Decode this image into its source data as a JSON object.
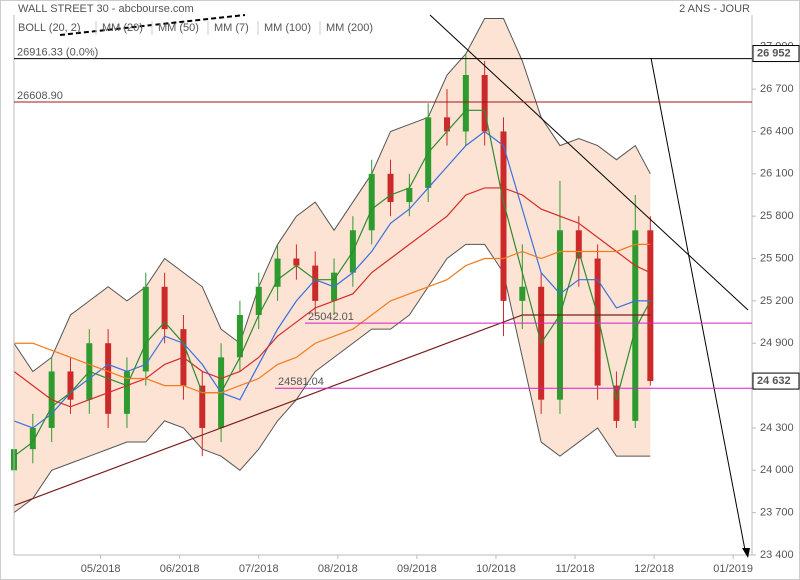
{
  "chart_data": {
    "type": "candlestick",
    "title": "WALL STREET 30 - abcbourse.com",
    "period": "2 ANS - JOUR",
    "x": [
      0,
      5,
      10,
      15,
      20,
      25,
      30,
      35,
      40,
      45,
      50,
      55,
      60,
      65,
      70,
      75,
      80,
      85,
      90,
      95,
      100,
      105,
      110,
      115,
      120,
      125,
      130,
      135,
      140,
      145,
      150,
      155,
      160,
      165,
      169
    ],
    "open": [
      24000,
      24150,
      24300,
      24700,
      24500,
      24900,
      24400,
      24700,
      25300,
      25000,
      24600,
      24300,
      24800,
      25100,
      25300,
      25500,
      25450,
      25200,
      25400,
      25700,
      26100,
      25900,
      26000,
      26500,
      26400,
      26800,
      26400,
      25200,
      25300,
      24500,
      25700,
      25500,
      24600,
      24350,
      25700
    ],
    "high": [
      24250,
      24400,
      24800,
      24800,
      25000,
      25000,
      24800,
      25400,
      25400,
      25100,
      24700,
      24900,
      25200,
      25400,
      25600,
      25600,
      25550,
      25500,
      25800,
      26200,
      26200,
      26100,
      26600,
      26700,
      26950,
      26900,
      26500,
      25600,
      25400,
      26050,
      25800,
      25600,
      24700,
      25950,
      25800
    ],
    "low": [
      23600,
      24050,
      24200,
      24400,
      24400,
      24300,
      24300,
      24600,
      24900,
      24500,
      24100,
      24200,
      24700,
      25000,
      25200,
      25350,
      25100,
      25100,
      25300,
      25600,
      25800,
      25800,
      25900,
      26300,
      26300,
      26300,
      24950,
      25000,
      24400,
      24400,
      25300,
      24500,
      24300,
      24300,
      24600
    ],
    "close": [
      24150,
      24300,
      24700,
      24500,
      24900,
      24400,
      24700,
      25300,
      25000,
      24600,
      24300,
      24800,
      25100,
      25300,
      25500,
      25450,
      25200,
      25400,
      25700,
      26100,
      25900,
      26000,
      26500,
      26400,
      26800,
      26400,
      25200,
      25300,
      24500,
      25700,
      25500,
      24600,
      24350,
      25700,
      24632
    ],
    "up_color": "#2e9b2e",
    "down_color": "#cc2a2a",
    "bollinger": {
      "name": "BOLL (20, 2)",
      "color": "#555555",
      "fill": "#fde3d3",
      "upper": [
        24900,
        24700,
        24800,
        25100,
        25200,
        25300,
        25200,
        25300,
        25500,
        25400,
        25300,
        25000,
        24900,
        25300,
        25600,
        25800,
        25900,
        25700,
        25900,
        26100,
        26400,
        26450,
        26500,
        26800,
        26950,
        27200,
        27200,
        26900,
        26500,
        26300,
        26350,
        26300,
        26200,
        26300,
        26100
      ],
      "lower": [
        23700,
        23800,
        24000,
        24050,
        24100,
        24150,
        24200,
        24200,
        24350,
        24300,
        24150,
        24100,
        24000,
        24150,
        24350,
        24500,
        24700,
        24800,
        24900,
        25000,
        25000,
        25100,
        25300,
        25500,
        25600,
        25600,
        25400,
        24800,
        24200,
        24100,
        24200,
        24300,
        24100,
        24100,
        24100
      ]
    },
    "series": [
      {
        "name": "MM (20)",
        "color": "#3b6fe0",
        "values": [
          24350,
          24300,
          24400,
          24550,
          24650,
          24750,
          24700,
          24750,
          24950,
          24900,
          24750,
          24550,
          24500,
          24750,
          25000,
          25200,
          25350,
          25300,
          25400,
          25550,
          25750,
          25850,
          26000,
          26150,
          26300,
          26400,
          26300,
          25850,
          25400,
          25250,
          25350,
          25350,
          25150,
          25200,
          25200
        ]
      },
      {
        "name": "MM (50)",
        "color": "#d62a2a",
        "values": [
          24700,
          24600,
          24500,
          24450,
          24500,
          24550,
          24600,
          24650,
          24750,
          24800,
          24700,
          24650,
          24700,
          24800,
          24950,
          25050,
          25150,
          25200,
          25250,
          25400,
          25500,
          25600,
          25700,
          25800,
          25950,
          26000,
          26000,
          25950,
          25850,
          25800,
          25750,
          25650,
          25550,
          25450,
          25400
        ]
      },
      {
        "name": "MM (7)",
        "color": "#2e8b2e",
        "values": [
          24100,
          24200,
          24450,
          24550,
          24700,
          24650,
          24600,
          24900,
          25050,
          24900,
          24550,
          24550,
          24800,
          25100,
          25350,
          25450,
          25350,
          25350,
          25550,
          25850,
          25950,
          26000,
          26250,
          26400,
          26550,
          26550,
          25900,
          25400,
          24900,
          25100,
          25550,
          25100,
          24500,
          25000,
          25200
        ]
      },
      {
        "name": "MM (100)",
        "color": "#f07c1e",
        "values": [
          24900,
          24900,
          24850,
          24800,
          24750,
          24700,
          24650,
          24650,
          24600,
          24600,
          24550,
          24550,
          24600,
          24650,
          24750,
          24800,
          24900,
          24950,
          25000,
          25100,
          25200,
          25250,
          25300,
          25350,
          25450,
          25500,
          25500,
          25550,
          25500,
          25550,
          25550,
          25550,
          25550,
          25600,
          25600
        ]
      },
      {
        "name": "MM (200)",
        "color": "#7a1f1f",
        "values": [
          23750,
          23800,
          23850,
          23900,
          23950,
          24000,
          24050,
          24100,
          24150,
          24200,
          24250,
          24300,
          24350,
          24400,
          24450,
          24500,
          24550,
          24600,
          24650,
          24700,
          24750,
          24800,
          24850,
          24900,
          24950,
          25000,
          25050,
          25100,
          25100,
          25100,
          25100,
          25100,
          25100,
          25100,
          25100
        ]
      }
    ],
    "levels": [
      {
        "value": 26916.33,
        "label": "26916.33 (0.0%)",
        "color": "#000000"
      },
      {
        "value": 26608.9,
        "label": "26608.90",
        "color": "#a01818"
      },
      {
        "value": 25042.01,
        "label": "25042.01",
        "color": "#d020c8"
      },
      {
        "value": 24581.04,
        "label": "24581.04",
        "color": "#d020c8"
      }
    ],
    "price_tags": [
      {
        "value": 26952,
        "label": "26 952"
      },
      {
        "value": 24632,
        "label": "24 632"
      }
    ],
    "xlim": [
      0,
      196
    ],
    "xticks": [
      {
        "value": 23,
        "label": "05/2018"
      },
      {
        "value": 44,
        "label": "06/2018"
      },
      {
        "value": 65,
        "label": "07/2018"
      },
      {
        "value": 86,
        "label": "08/2018"
      },
      {
        "value": 107,
        "label": "09/2018"
      },
      {
        "value": 128,
        "label": "10/2018"
      },
      {
        "value": 149,
        "label": "11/2018"
      },
      {
        "value": 170,
        "label": "12/2018"
      },
      {
        "value": 191,
        "label": "01/2019"
      }
    ],
    "ylim": [
      23400,
      27225
    ],
    "yticks": [
      {
        "value": 23400,
        "label": "23 400"
      },
      {
        "value": 23700,
        "label": "23 700"
      },
      {
        "value": 24000,
        "label": "24 000"
      },
      {
        "value": 24300,
        "label": "24 300"
      },
      {
        "value": 24600,
        "label": "24 600"
      },
      {
        "value": 24900,
        "label": "24 900"
      },
      {
        "value": 25200,
        "label": "25 200"
      },
      {
        "value": 25500,
        "label": "25 500"
      },
      {
        "value": 25800,
        "label": "25 800"
      },
      {
        "value": 26100,
        "label": "26 100"
      },
      {
        "value": 26400,
        "label": "26 400"
      },
      {
        "value": 26700,
        "label": "26 700"
      },
      {
        "value": 27000,
        "label": "27 000"
      }
    ]
  }
}
